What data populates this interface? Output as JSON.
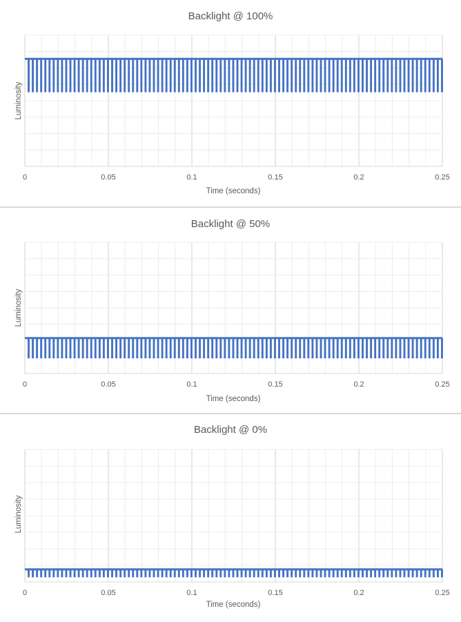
{
  "chart_data": [
    {
      "type": "line",
      "title": "Backlight @ 100%",
      "xlabel": "Time (seconds)",
      "ylabel": "Luminosity",
      "xlim": [
        0,
        0.25
      ],
      "x_ticks": [
        "0",
        "0.05",
        "0.1",
        "0.15",
        "0.2",
        "0.25"
      ],
      "y_ticks_labeled": false,
      "grid": true,
      "color": "#4472c4",
      "series": [
        {
          "waveform": "square pulse train",
          "pulses": 100,
          "period_s": 0.0025,
          "high_level": 0.82,
          "low_level": 0.57
        }
      ]
    },
    {
      "type": "line",
      "title": "Backlight @ 50%",
      "xlabel": "Time (seconds)",
      "ylabel": "Luminosity",
      "xlim": [
        0,
        0.25
      ],
      "x_ticks": [
        "0",
        "0.05",
        "0.1",
        "0.15",
        "0.2",
        "0.25"
      ],
      "y_ticks_labeled": false,
      "grid": true,
      "color": "#4472c4",
      "series": [
        {
          "waveform": "square pulse train",
          "pulses": 100,
          "period_s": 0.0025,
          "high_level": 0.27,
          "low_level": 0.12
        }
      ]
    },
    {
      "type": "line",
      "title": "Backlight @ 0%",
      "xlabel": "Time (seconds)",
      "ylabel": "Luminosity",
      "xlim": [
        0,
        0.25
      ],
      "x_ticks": [
        "0",
        "0.05",
        "0.1",
        "0.15",
        "0.2",
        "0.25"
      ],
      "y_ticks_labeled": false,
      "grid": true,
      "color": "#4472c4",
      "series": [
        {
          "waveform": "square pulse train",
          "pulses": 100,
          "period_s": 0.0025,
          "high_level": 0.095,
          "low_level": 0.04
        }
      ]
    }
  ]
}
